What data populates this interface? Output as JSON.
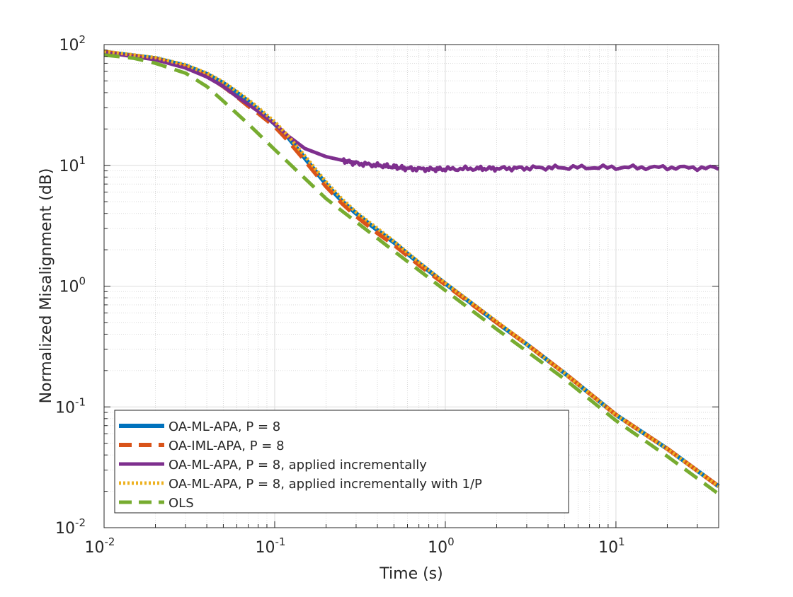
{
  "chart_data": {
    "type": "line",
    "title": "",
    "xlabel": "Time (s)",
    "ylabel": "Normalized Misalignment (dB)",
    "xscale": "log",
    "yscale": "log",
    "xlim": [
      0.01,
      40
    ],
    "ylim": [
      0.01,
      100
    ],
    "grid": true,
    "minor_grid": true,
    "legend_position": "bottom-left",
    "x_ticks": [
      {
        "value": 0.01,
        "base": "10",
        "exp": "-2"
      },
      {
        "value": 0.1,
        "base": "10",
        "exp": "-1"
      },
      {
        "value": 1,
        "base": "10",
        "exp": "0"
      },
      {
        "value": 10,
        "base": "10",
        "exp": "1"
      }
    ],
    "y_ticks": [
      {
        "value": 0.01,
        "base": "10",
        "exp": "-2"
      },
      {
        "value": 0.1,
        "base": "10",
        "exp": "-1"
      },
      {
        "value": 1,
        "base": "10",
        "exp": "0"
      },
      {
        "value": 10,
        "base": "10",
        "exp": "1"
      },
      {
        "value": 100,
        "base": "10",
        "exp": "2"
      }
    ],
    "series": [
      {
        "name": "OA-ML-APA, P = 8",
        "color": "#0072BD",
        "style": "solid",
        "x": [
          0.01,
          0.02,
          0.03,
          0.04,
          0.05,
          0.06,
          0.07,
          0.08,
          0.1,
          0.12,
          0.15,
          0.2,
          0.25,
          0.3,
          0.4,
          0.5,
          0.7,
          1,
          2,
          3,
          5,
          10,
          20,
          40
        ],
        "y": [
          87,
          77,
          67,
          57,
          48,
          40,
          34,
          29,
          22,
          17,
          11.5,
          7.0,
          5.0,
          4.0,
          2.9,
          2.3,
          1.55,
          1.05,
          0.5,
          0.33,
          0.19,
          0.086,
          0.045,
          0.022
        ]
      },
      {
        "name": "OA-IML-APA, P = 8",
        "color": "#D95319",
        "style": "dashed",
        "x": [
          0.01,
          0.02,
          0.03,
          0.04,
          0.05,
          0.06,
          0.07,
          0.08,
          0.1,
          0.12,
          0.15,
          0.2,
          0.25,
          0.3,
          0.4,
          0.5,
          0.7,
          1,
          2,
          3,
          5,
          10,
          20,
          40
        ],
        "y": [
          87,
          76,
          65,
          55,
          45,
          37,
          31,
          27,
          21,
          16,
          11,
          6.7,
          4.8,
          3.8,
          2.75,
          2.2,
          1.5,
          1.03,
          0.5,
          0.33,
          0.19,
          0.086,
          0.045,
          0.022
        ]
      },
      {
        "name": "OA-ML-APA, P = 8, applied incrementally",
        "color": "#7E2F8E",
        "style": "solid",
        "noisy": true,
        "x": [
          0.01,
          0.02,
          0.03,
          0.04,
          0.05,
          0.06,
          0.07,
          0.08,
          0.1,
          0.12,
          0.15,
          0.2,
          0.25,
          0.3,
          0.4,
          0.5,
          0.6,
          0.8,
          1,
          1.5,
          2,
          3,
          5,
          10,
          20,
          40
        ],
        "y": [
          86,
          75,
          64,
          54,
          45,
          37,
          32,
          28,
          22,
          17.5,
          13.8,
          11.8,
          11.0,
          10.4,
          10.0,
          9.7,
          9.4,
          9.3,
          9.3,
          9.4,
          9.4,
          9.5,
          9.6,
          9.6,
          9.6,
          9.5
        ]
      },
      {
        "name": "OA-ML-APA, P = 8, applied incrementally with 1/P",
        "color": "#EDB120",
        "style": "dotted",
        "x": [
          0.01,
          0.02,
          0.03,
          0.04,
          0.05,
          0.06,
          0.07,
          0.08,
          0.1,
          0.12,
          0.15,
          0.2,
          0.25,
          0.3,
          0.4,
          0.5,
          0.7,
          1,
          2,
          3,
          5,
          10,
          20,
          40
        ],
        "y": [
          88,
          78,
          68,
          58,
          49,
          41,
          35,
          30,
          23,
          17.5,
          12,
          7.3,
          5.2,
          4.1,
          3.0,
          2.35,
          1.58,
          1.06,
          0.51,
          0.33,
          0.19,
          0.086,
          0.045,
          0.022
        ]
      },
      {
        "name": "OLS",
        "color": "#77AC30",
        "style": "dashed",
        "x": [
          0.01,
          0.015,
          0.02,
          0.03,
          0.04,
          0.05,
          0.07,
          0.1,
          0.2,
          0.5,
          1,
          2,
          5,
          10,
          20,
          40
        ],
        "y": [
          82,
          77,
          70,
          58,
          45,
          34,
          22,
          13.5,
          5.3,
          1.95,
          0.92,
          0.44,
          0.17,
          0.077,
          0.039,
          0.019
        ]
      }
    ]
  }
}
